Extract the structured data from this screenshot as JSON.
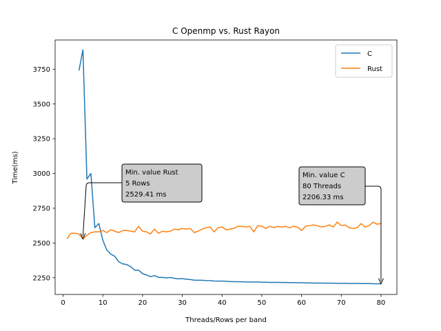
{
  "chart_data": {
    "type": "line",
    "title": "C Openmp vs. Rust Rayon",
    "xlabel": "Threads/Rows per band",
    "ylabel": "Time(ms)",
    "xlim": [
      -2,
      84
    ],
    "ylim": [
      2130,
      3960
    ],
    "xticks": [
      0,
      10,
      20,
      30,
      40,
      50,
      60,
      70,
      80
    ],
    "yticks": [
      2250,
      2500,
      2750,
      3000,
      3250,
      3500,
      3750
    ],
    "grid": false,
    "legend_position": "top-right",
    "series": [
      {
        "name": "C",
        "color": "#1f77b4",
        "x": [
          4,
          5,
          6,
          7,
          8,
          9,
          10,
          11,
          12,
          13,
          14,
          15,
          16,
          17,
          18,
          19,
          20,
          21,
          22,
          23,
          24,
          25,
          26,
          27,
          28,
          29,
          30,
          31,
          32,
          33,
          34,
          35,
          36,
          37,
          38,
          39,
          40,
          41,
          42,
          43,
          44,
          45,
          46,
          47,
          48,
          49,
          50,
          51,
          52,
          53,
          54,
          55,
          56,
          57,
          58,
          59,
          60,
          61,
          62,
          63,
          64,
          65,
          66,
          67,
          68,
          69,
          70,
          71,
          72,
          73,
          74,
          75,
          76,
          77,
          78,
          79,
          80
        ],
        "y": [
          3740,
          3890,
          2960,
          3000,
          2610,
          2640,
          2520,
          2450,
          2420,
          2405,
          2365,
          2350,
          2345,
          2330,
          2305,
          2305,
          2280,
          2270,
          2258,
          2266,
          2253,
          2253,
          2249,
          2252,
          2246,
          2242,
          2244,
          2240,
          2237,
          2233,
          2232,
          2232,
          2230,
          2229,
          2227,
          2226,
          2226,
          2225,
          2223,
          2222,
          2222,
          2221,
          2220,
          2220,
          2219,
          2219,
          2218,
          2218,
          2217,
          2217,
          2217,
          2216,
          2216,
          2215,
          2215,
          2214,
          2214,
          2213,
          2213,
          2212,
          2212,
          2212,
          2211,
          2211,
          2211,
          2210,
          2210,
          2210,
          2209,
          2209,
          2209,
          2208,
          2208,
          2208,
          2207,
          2207,
          2206.33
        ]
      },
      {
        "name": "Rust",
        "color": "#ff7f0e",
        "x": [
          1,
          2,
          3,
          4,
          5,
          6,
          7,
          8,
          9,
          10,
          11,
          12,
          13,
          14,
          15,
          16,
          17,
          18,
          19,
          20,
          21,
          22,
          23,
          24,
          25,
          26,
          27,
          28,
          29,
          30,
          31,
          32,
          33,
          34,
          35,
          36,
          37,
          38,
          39,
          40,
          41,
          42,
          43,
          44,
          45,
          46,
          47,
          48,
          49,
          50,
          51,
          52,
          53,
          54,
          55,
          56,
          57,
          58,
          59,
          60,
          61,
          62,
          63,
          64,
          65,
          66,
          67,
          68,
          69,
          70,
          71,
          72,
          73,
          74,
          75,
          76,
          77,
          78,
          79,
          80
        ],
        "y": [
          2530,
          2570,
          2570,
          2565,
          2529.41,
          2555,
          2575,
          2580,
          2580,
          2590,
          2575,
          2595,
          2585,
          2575,
          2590,
          2590,
          2585,
          2580,
          2620,
          2585,
          2580,
          2565,
          2600,
          2570,
          2585,
          2580,
          2585,
          2600,
          2595,
          2605,
          2600,
          2605,
          2575,
          2585,
          2600,
          2610,
          2615,
          2580,
          2610,
          2615,
          2595,
          2600,
          2605,
          2620,
          2620,
          2615,
          2620,
          2580,
          2625,
          2620,
          2605,
          2620,
          2610,
          2620,
          2615,
          2620,
          2610,
          2620,
          2615,
          2590,
          2620,
          2625,
          2630,
          2625,
          2615,
          2620,
          2630,
          2615,
          2650,
          2625,
          2630,
          2610,
          2605,
          2610,
          2640,
          2615,
          2625,
          2650,
          2635,
          2640
        ]
      }
    ],
    "annotations": [
      {
        "lines": [
          "Min. value Rust",
          "5 Rows",
          "2529.41 ms"
        ],
        "point_x": 5,
        "point_y": 2529.41
      },
      {
        "lines": [
          "Min. value C",
          "80 Threads",
          "2206.33 ms"
        ],
        "point_x": 80,
        "point_y": 2206.33
      }
    ]
  }
}
